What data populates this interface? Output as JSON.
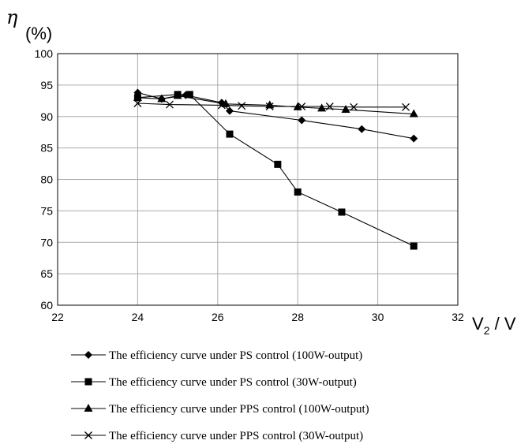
{
  "chart_data": {
    "type": "line",
    "title": "",
    "ylabel_symbol": "η",
    "ylabel_unit": "(%)",
    "xlabel_main": "V",
    "xlabel_sub": "2",
    "xlabel_unit": " / V",
    "xlim": [
      22,
      32
    ],
    "ylim": [
      60,
      100
    ],
    "xticks": [
      "22",
      "24",
      "26",
      "28",
      "30",
      "32"
    ],
    "yticks": [
      "60",
      "65",
      "70",
      "75",
      "80",
      "85",
      "90",
      "95",
      "100"
    ],
    "grid": true,
    "legend_position": "bottom",
    "series": [
      {
        "name": "The efficiency curve under PS control (100W-output)",
        "marker": "diamond",
        "x": [
          24.0,
          24.6,
          25.2,
          26.1,
          26.3,
          28.1,
          29.6,
          30.9
        ],
        "y": [
          93.8,
          92.8,
          93.4,
          92.2,
          90.9,
          89.4,
          88.0,
          86.5
        ]
      },
      {
        "name": "The efficiency curve under PS control (30W-output)",
        "marker": "square",
        "x": [
          24.0,
          25.0,
          25.3,
          26.3,
          27.5,
          28.0,
          29.1,
          30.9
        ],
        "y": [
          93.0,
          93.5,
          93.5,
          87.2,
          82.4,
          78.0,
          74.8,
          69.4
        ]
      },
      {
        "name": "The efficiency curve under PPS control (100W-output)",
        "marker": "triangle",
        "x": [
          24.0,
          24.6,
          25.0,
          26.2,
          27.3,
          28.0,
          28.6,
          29.2,
          30.9
        ],
        "y": [
          93.0,
          92.8,
          93.3,
          92.0,
          91.8,
          91.5,
          91.3,
          91.1,
          90.4
        ]
      },
      {
        "name": "The efficiency curve under PPS control (30W-output)",
        "marker": "x",
        "x": [
          24.0,
          24.8,
          26.1,
          26.6,
          27.3,
          28.1,
          28.8,
          29.4,
          30.7
        ],
        "y": [
          92.1,
          91.9,
          91.8,
          91.7,
          91.6,
          91.6,
          91.6,
          91.5,
          91.5
        ]
      }
    ]
  }
}
